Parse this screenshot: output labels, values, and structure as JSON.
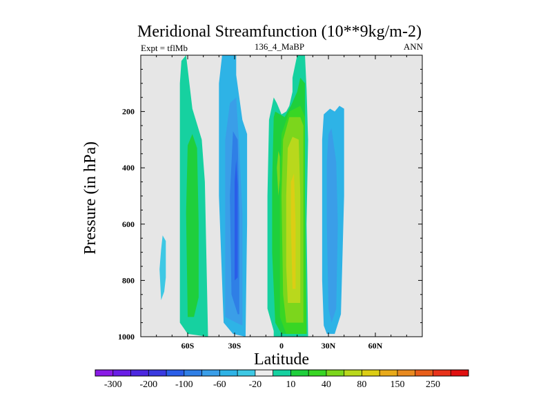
{
  "chart_data": {
    "type": "contour",
    "title": "Meridional Streamfunction (10**9kg/m-2)",
    "left_label": "Expt = tflMb",
    "center_label": "136_4_MaBP",
    "right_label": "ANN",
    "xlabel": "Latitude",
    "ylabel": "Pressure (in hPa)",
    "xlim": [
      -90,
      90
    ],
    "ylim": [
      0,
      1000
    ],
    "y_inverted": true,
    "x_ticks": [
      {
        "value": -60,
        "label": "60S"
      },
      {
        "value": -30,
        "label": "30S"
      },
      {
        "value": 0,
        "label": "0"
      },
      {
        "value": 30,
        "label": "30N"
      },
      {
        "value": 60,
        "label": "60N"
      }
    ],
    "y_ticks": [
      {
        "value": 200,
        "label": "200"
      },
      {
        "value": 400,
        "label": "400"
      },
      {
        "value": 600,
        "label": "600"
      },
      {
        "value": 800,
        "label": "800"
      },
      {
        "value": 1000,
        "label": "1000"
      }
    ],
    "background_color": "#e6e6e6",
    "colorbar": {
      "colors": [
        "#8a1be6",
        "#6a1ee6",
        "#4c27e0",
        "#3a3ae0",
        "#2a5ee8",
        "#2f7fe6",
        "#3a9ee8",
        "#2eb3e6",
        "#3ec8e4",
        "#ececec",
        "#16d1a0",
        "#1fcf3c",
        "#38d624",
        "#7cd61c",
        "#b9d81c",
        "#dccd14",
        "#e8aa1a",
        "#e88a20",
        "#e85e1a",
        "#e8321a",
        "#e01010"
      ],
      "labels": [
        {
          "index": 1,
          "text": "-300"
        },
        {
          "index": 3,
          "text": "-200"
        },
        {
          "index": 5,
          "text": "-100"
        },
        {
          "index": 7,
          "text": "-60"
        },
        {
          "index": 9,
          "text": "-20"
        },
        {
          "index": 11,
          "text": "10"
        },
        {
          "index": 13,
          "text": "40"
        },
        {
          "index": 15,
          "text": "80"
        },
        {
          "index": 17,
          "text": "150"
        },
        {
          "index": 19,
          "text": "250"
        }
      ]
    },
    "regions": [
      {
        "color": "#3ec8e4",
        "points": [
          [
            -77,
            870
          ],
          [
            -75,
            840
          ],
          [
            -74,
            790
          ],
          [
            -74,
            660
          ],
          [
            -76,
            640
          ],
          [
            -77,
            690
          ],
          [
            -78,
            760
          ]
        ]
      },
      {
        "color": "#16d1a0",
        "points": [
          [
            -47,
            1000
          ],
          [
            -60,
            990
          ],
          [
            -65,
            950
          ],
          [
            -65,
            600
          ],
          [
            -65,
            100
          ],
          [
            -64,
            20
          ],
          [
            -61,
            0
          ],
          [
            -57,
            190
          ],
          [
            -51,
            300
          ],
          [
            -49,
            450
          ],
          [
            -47,
            1000
          ]
        ]
      },
      {
        "color": "#1fcf3c",
        "points": [
          [
            -60,
            930
          ],
          [
            -61,
            560
          ],
          [
            -60,
            320
          ],
          [
            -57,
            280
          ],
          [
            -54,
            330
          ],
          [
            -53,
            600
          ],
          [
            -53,
            860
          ],
          [
            -56,
            930
          ]
        ]
      },
      {
        "color": "#2eb3e6",
        "points": [
          [
            -23,
            1000
          ],
          [
            -31,
            990
          ],
          [
            -37,
            950
          ],
          [
            -40,
            500
          ],
          [
            -40,
            100
          ],
          [
            -38,
            0
          ],
          [
            -29,
            0
          ],
          [
            -29,
            70
          ],
          [
            -25,
            230
          ],
          [
            -22,
            280
          ],
          [
            -22,
            600
          ],
          [
            -23,
            1000
          ]
        ]
      },
      {
        "color": "#3a9ee8",
        "points": [
          [
            -29,
            950
          ],
          [
            -36,
            930
          ],
          [
            -36,
            500
          ],
          [
            -36,
            300
          ],
          [
            -33,
            170
          ],
          [
            -29,
            150
          ],
          [
            -27,
            330
          ],
          [
            -25,
            560
          ],
          [
            -25,
            960
          ]
        ]
      },
      {
        "color": "#2f7fe6",
        "points": [
          [
            -28,
            920
          ],
          [
            -32,
            850
          ],
          [
            -33,
            500
          ],
          [
            -31,
            270
          ],
          [
            -28,
            300
          ],
          [
            -27,
            560
          ],
          [
            -27,
            920
          ]
        ]
      },
      {
        "color": "#2a5ee8",
        "points": [
          [
            -30,
            800
          ],
          [
            -30,
            450
          ],
          [
            -29,
            370
          ],
          [
            -28,
            460
          ],
          [
            -28,
            790
          ]
        ]
      },
      {
        "color": "#16d1a0",
        "points": [
          [
            -5,
            980
          ],
          [
            -9,
            900
          ],
          [
            -9,
            500
          ],
          [
            -8,
            230
          ],
          [
            -5,
            150
          ],
          [
            -3,
            170
          ],
          [
            0,
            210
          ],
          [
            3,
            200
          ],
          [
            5,
            180
          ],
          [
            7,
            130
          ],
          [
            7,
            80
          ],
          [
            10,
            0
          ],
          [
            15,
            0
          ],
          [
            16,
            120
          ],
          [
            17,
            300
          ],
          [
            16,
            600
          ],
          [
            17,
            1000
          ],
          [
            -5,
            1000
          ]
        ]
      },
      {
        "color": "#1fcf3c",
        "points": [
          [
            0,
            990
          ],
          [
            -4,
            950
          ],
          [
            -6,
            700
          ],
          [
            -6,
            450
          ],
          [
            -5,
            220
          ],
          [
            -4,
            200
          ],
          [
            2,
            220
          ],
          [
            6,
            180
          ],
          [
            10,
            130
          ],
          [
            12,
            80
          ],
          [
            15,
            100
          ],
          [
            15,
            300
          ],
          [
            15,
            600
          ],
          [
            16,
            990
          ]
        ]
      },
      {
        "color": "#38d624",
        "points": [
          [
            3,
            990
          ],
          [
            -1,
            930
          ],
          [
            -1,
            500
          ],
          [
            0,
            280
          ],
          [
            5,
            200
          ],
          [
            12,
            180
          ],
          [
            15,
            220
          ],
          [
            15,
            500
          ],
          [
            16,
            990
          ]
        ]
      },
      {
        "color": "#7cd61c",
        "points": [
          [
            -2,
            500
          ],
          [
            -3,
            400
          ],
          [
            -2,
            340
          ],
          [
            -1,
            360
          ],
          [
            -1,
            440
          ]
        ]
      },
      {
        "color": "#7cd61c",
        "points": [
          [
            3,
            950
          ],
          [
            1,
            850
          ],
          [
            0,
            500
          ],
          [
            1,
            300
          ],
          [
            5,
            220
          ],
          [
            12,
            220
          ],
          [
            14,
            250
          ],
          [
            14,
            500
          ],
          [
            14,
            950
          ]
        ]
      },
      {
        "color": "#b9d81c",
        "points": [
          [
            4,
            880
          ],
          [
            3,
            750
          ],
          [
            3,
            500
          ],
          [
            4,
            330
          ],
          [
            7,
            290
          ],
          [
            11,
            300
          ],
          [
            12,
            500
          ],
          [
            12,
            880
          ]
        ]
      },
      {
        "color": "#dccd14",
        "points": [
          [
            7,
            830
          ],
          [
            6,
            600
          ],
          [
            6,
            450
          ],
          [
            8,
            420
          ],
          [
            9,
            600
          ],
          [
            9,
            830
          ]
        ]
      },
      {
        "color": "#2eb3e6",
        "points": [
          [
            29,
            990
          ],
          [
            27,
            960
          ],
          [
            26,
            800
          ],
          [
            26,
            300
          ],
          [
            27,
            210
          ],
          [
            31,
            190
          ],
          [
            34,
            200
          ],
          [
            37,
            180
          ],
          [
            40,
            190
          ],
          [
            40,
            500
          ],
          [
            38,
            920
          ],
          [
            34,
            990
          ]
        ]
      },
      {
        "color": "#3a9ee8",
        "points": [
          [
            32,
            950
          ],
          [
            30,
            900
          ],
          [
            29,
            600
          ],
          [
            29,
            380
          ],
          [
            30,
            280
          ],
          [
            32,
            260
          ],
          [
            35,
            380
          ],
          [
            36,
            600
          ],
          [
            35,
            900
          ]
        ]
      }
    ]
  }
}
